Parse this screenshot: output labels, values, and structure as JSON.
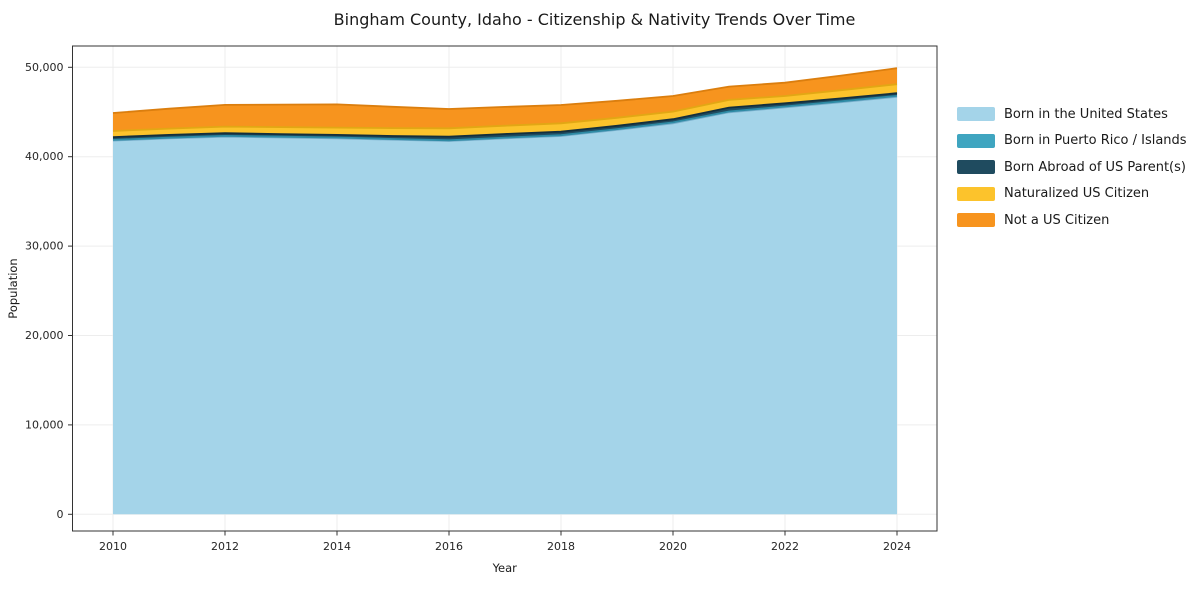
{
  "title": "Bingham County, Idaho - Citizenship & Nativity Trends Over Time",
  "chart_data": {
    "type": "area",
    "stacked": true,
    "title": "Bingham County, Idaho - Citizenship & Nativity Trends Over Time",
    "xlabel": "Year",
    "ylabel": "Population",
    "grid": true,
    "legend_position": "right",
    "ylim": [
      0,
      50000
    ],
    "yticks": [
      0,
      10000,
      20000,
      30000,
      40000,
      50000
    ],
    "ytick_labels": [
      "0",
      "10,000",
      "20,000",
      "30,000",
      "40,000",
      "50,000"
    ],
    "xticks": [
      2010,
      2012,
      2014,
      2016,
      2018,
      2020,
      2022,
      2024
    ],
    "xtick_labels": [
      "2010",
      "2012",
      "2014",
      "2016",
      "2018",
      "2020",
      "2022",
      "2024"
    ],
    "x": [
      2010,
      2011,
      2012,
      2013,
      2014,
      2015,
      2016,
      2017,
      2018,
      2019,
      2020,
      2021,
      2022,
      2023,
      2024
    ],
    "series": [
      {
        "name": "Born in the United States",
        "color": "#A4D4E9",
        "edge_color": "#77AECB",
        "values": [
          41800,
          42050,
          42240,
          42150,
          42060,
          41900,
          41760,
          42050,
          42320,
          43000,
          43740,
          44970,
          45520,
          46100,
          46700
        ]
      },
      {
        "name": "Born in Puerto Rico / Islands",
        "color": "#3FA5C0",
        "edge_color": "#2E8BA5",
        "values": [
          80,
          80,
          85,
          85,
          85,
          80,
          80,
          90,
          90,
          90,
          95,
          90,
          90,
          95,
          100
        ]
      },
      {
        "name": "Born Abroad of US Parent(s)",
        "color": "#1F4B5F",
        "edge_color": "#142F3D",
        "values": [
          310,
          305,
          300,
          295,
          290,
          340,
          400,
          395,
          390,
          370,
          355,
          430,
          360,
          330,
          300
        ]
      },
      {
        "name": "Naturalized US Citizen",
        "color": "#FCC32C",
        "edge_color": "#E2A714",
        "values": [
          680,
          710,
          740,
          780,
          820,
          880,
          940,
          935,
          935,
          895,
          855,
          860,
          815,
          910,
          1010
        ]
      },
      {
        "name": "Not a US Citizen",
        "color": "#F7941E",
        "edge_color": "#DB7E0E",
        "values": [
          2020,
          2220,
          2425,
          2520,
          2590,
          2380,
          2160,
          2105,
          2050,
          1900,
          1750,
          1490,
          1490,
          1640,
          1790
        ]
      }
    ]
  }
}
